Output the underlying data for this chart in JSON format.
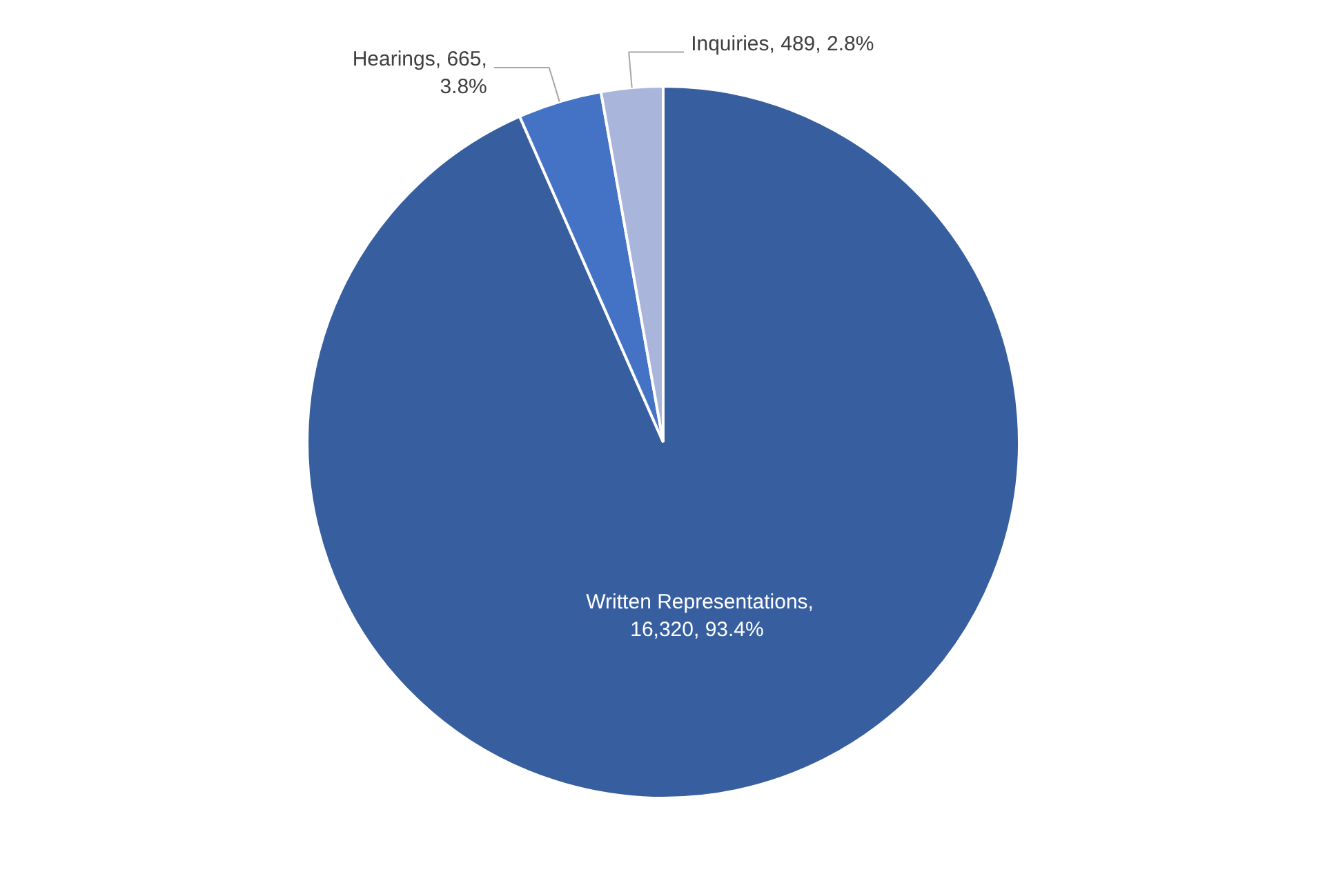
{
  "chart_data": {
    "type": "pie",
    "categories": [
      "Written Representations",
      "Hearings",
      "Inquiries"
    ],
    "values": [
      16320,
      665,
      489
    ],
    "colors": [
      "#375e9f",
      "#4472c4",
      "#a9b5db"
    ],
    "value_labels": [
      ",\n16,320,  93.4%",
      ", 665,\n3.8%",
      ", 489, 2.8%"
    ],
    "legend": false
  }
}
